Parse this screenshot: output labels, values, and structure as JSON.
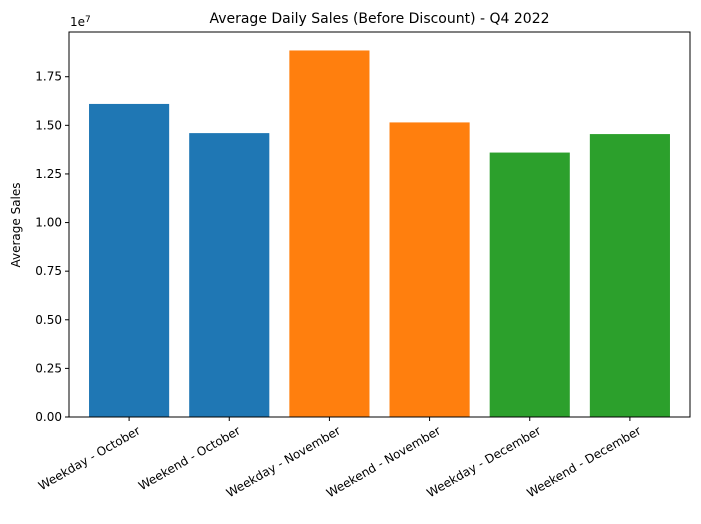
{
  "chart_data": {
    "type": "bar",
    "title": "Average Daily Sales (Before Discount) - Q4 2022",
    "xlabel": "",
    "ylabel": "Average Sales",
    "y_offset_label": "1e7",
    "ylim": [
      0,
      1.98
    ],
    "grid": false,
    "legend": "none",
    "categories": [
      "Weekday - October",
      "Weekend - October",
      "Weekday - November",
      "Weekend - November",
      "Weekday - December",
      "Weekend - December"
    ],
    "values": [
      1.61,
      1.46,
      1.885,
      1.515,
      1.36,
      1.455
    ],
    "colors": [
      "#1f77b4",
      "#1f77b4",
      "#ff7f0e",
      "#ff7f0e",
      "#2ca02c",
      "#2ca02c"
    ],
    "yticks": [
      {
        "value": 0.0,
        "label": "0.00"
      },
      {
        "value": 0.25,
        "label": "0.25"
      },
      {
        "value": 0.5,
        "label": "0.50"
      },
      {
        "value": 0.75,
        "label": "0.75"
      },
      {
        "value": 1.0,
        "label": "1.00"
      },
      {
        "value": 1.25,
        "label": "1.25"
      },
      {
        "value": 1.5,
        "label": "1.50"
      },
      {
        "value": 1.75,
        "label": "1.75"
      }
    ]
  }
}
